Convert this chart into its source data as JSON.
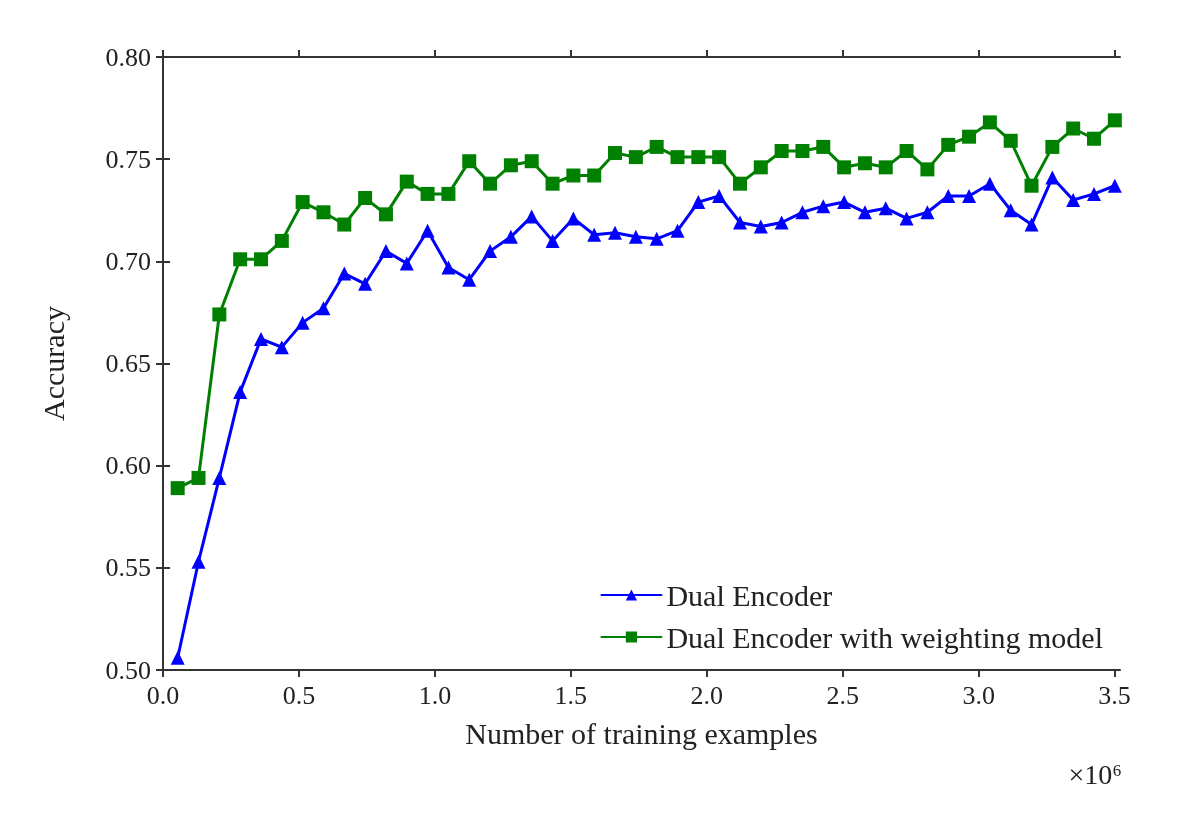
{
  "chart_data": {
    "type": "line",
    "xlabel": "Number of training examples",
    "ylabel": "Accuracy",
    "annotations": [
      "×10⁶"
    ],
    "x": [
      0.054,
      0.1306,
      0.2072,
      0.2838,
      0.3604,
      0.437,
      0.5136,
      0.5902,
      0.6668,
      0.7434,
      0.82,
      0.8966,
      0.9732,
      1.0498,
      1.1264,
      1.203,
      1.2796,
      1.3562,
      1.4328,
      1.5094,
      1.586,
      1.6626,
      1.7392,
      1.8158,
      1.8924,
      1.969,
      2.0456,
      2.1222,
      2.1988,
      2.2754,
      2.352,
      2.4286,
      2.5052,
      2.5818,
      2.6584,
      2.735,
      2.8116,
      2.8882,
      2.9648,
      3.0414,
      3.118,
      3.1946,
      3.2712,
      3.3478,
      3.4244,
      3.501
    ],
    "series": [
      {
        "name": "Dual Encoder",
        "color": "#0000ff",
        "marker": "triangle",
        "values": [
          0.506,
          0.553,
          0.594,
          0.636,
          0.662,
          0.658,
          0.67,
          0.677,
          0.694,
          0.689,
          0.705,
          0.699,
          0.715,
          0.697,
          0.691,
          0.705,
          0.712,
          0.722,
          0.71,
          0.721,
          0.713,
          0.714,
          0.712,
          0.711,
          0.715,
          0.729,
          0.732,
          0.719,
          0.717,
          0.719,
          0.724,
          0.727,
          0.729,
          0.724,
          0.726,
          0.721,
          0.724,
          0.732,
          0.732,
          0.738,
          0.725,
          0.718,
          0.741,
          0.73,
          0.733,
          0.737
        ]
      },
      {
        "name": "Dual Encoder with weighting model",
        "color": "#008000",
        "marker": "square",
        "values": [
          0.589,
          0.594,
          0.674,
          0.701,
          0.701,
          0.71,
          0.729,
          0.724,
          0.718,
          0.731,
          0.723,
          0.739,
          0.733,
          0.733,
          0.749,
          0.738,
          0.747,
          0.749,
          0.738,
          0.742,
          0.742,
          0.753,
          0.751,
          0.756,
          0.751,
          0.751,
          0.751,
          0.738,
          0.746,
          0.754,
          0.754,
          0.756,
          0.746,
          0.748,
          0.746,
          0.754,
          0.745,
          0.757,
          0.761,
          0.768,
          0.759,
          0.737,
          0.756,
          0.765,
          0.76,
          0.769
        ]
      }
    ],
    "xlim": [
      0,
      3.52
    ],
    "xticks": [
      {
        "value": 0,
        "label": "0.0"
      },
      0.5,
      {
        "value": 1,
        "label": "1.0"
      },
      1.5,
      {
        "value": 2,
        "label": "2.0"
      },
      2.5,
      {
        "value": 3,
        "label": "3.0"
      },
      3.5
    ],
    "ylim": [
      0.5,
      0.8
    ],
    "yticks": [
      {
        "value": 0.5,
        "label": "0.50"
      },
      {
        "value": 0.55,
        "label": "0.55"
      },
      {
        "value": 0.6,
        "label": "0.60"
      },
      {
        "value": 0.65,
        "label": "0.65"
      },
      {
        "value": 0.7,
        "label": "0.70"
      },
      {
        "value": 0.75,
        "label": "0.75"
      },
      {
        "value": 0.8,
        "label": "0.80"
      }
    ],
    "grid": false,
    "legend": "bottom right",
    "line_style": "solid"
  }
}
